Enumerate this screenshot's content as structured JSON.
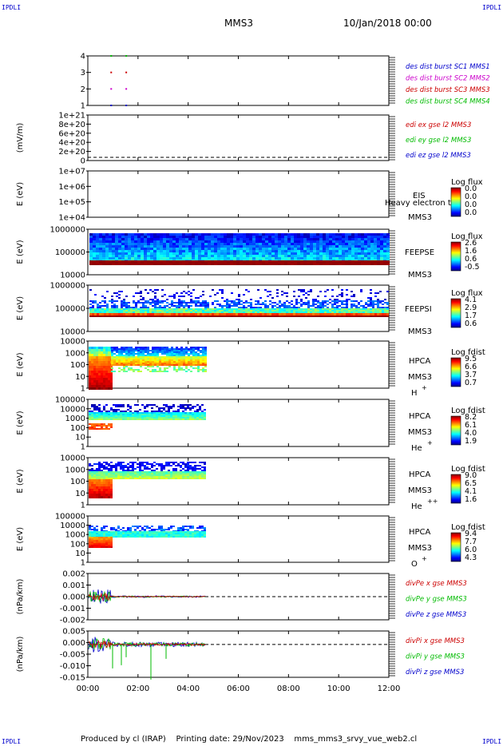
{
  "corners": {
    "tl": "IPDLI",
    "tr": "IPDLI",
    "bl": "IPDLI",
    "br": "IPDLI"
  },
  "header": {
    "spacecraft": "MMS3",
    "date": "10/Jan/2018 00:00"
  },
  "footer": {
    "text": "Produced by cl (IRAP)    Printing date: 29/Nov/2023    mms_mms3_srvy_vue_web2.cl"
  },
  "colors": {
    "sc1": "#0000cc",
    "sc2": "#cc00cc",
    "sc3": "#cc0000",
    "sc4": "#00bb00",
    "x": "#cc0000",
    "y": "#00bb00",
    "z": "#0000cc"
  },
  "chart_data": [
    {
      "id": "burst",
      "type": "scatter",
      "ylabel": "",
      "yticks": [
        "1",
        "2",
        "3",
        "4"
      ],
      "legend": [
        "des dist burst SC1 MMS1",
        "des dist burst SC2 MMS2",
        "des dist burst SC3 MMS3",
        "des dist burst SC4 MMS4"
      ],
      "series": [
        {
          "x": [
            0.9,
            1.5
          ],
          "y": [
            1,
            1
          ]
        },
        {
          "x": [
            0.9,
            1.5
          ],
          "y": [
            2,
            2
          ]
        },
        {
          "x": [
            0.9,
            1.5
          ],
          "y": [
            3,
            3
          ]
        },
        {
          "x": [
            0.9,
            1.5
          ],
          "y": [
            4,
            4
          ]
        }
      ]
    },
    {
      "id": "edi",
      "type": "line",
      "ylabel": "(mV/m)",
      "yticks": [
        "0",
        "2e+20",
        "4e+20",
        "6e+20",
        "8e+20",
        "1e+21"
      ],
      "legend": [
        "edi ex gse l2 MMS3",
        "edi ey gse l2 MMS3",
        "edi ez gse l2 MMS3"
      ]
    },
    {
      "id": "eis",
      "type": "heatmap",
      "ylabel": "E (eV)",
      "yticks": [
        "1e+04",
        "1e+05",
        "1e+06",
        "1e+07"
      ],
      "label1": "EIS",
      "label2": "MMS3",
      "overlay": "Heavy electron to",
      "colorbar_title": "Log flux",
      "colorbar_ticks": [
        "0.0",
        "0.0",
        "0.0",
        "0.0"
      ]
    },
    {
      "id": "feepse",
      "type": "heatmap",
      "ylabel": "E (eV)",
      "yticks": [
        "10000",
        "100000",
        "1000000"
      ],
      "label1": "FEEPSE",
      "label2": "MMS3",
      "colorbar_title": "Log flux",
      "colorbar_ticks": [
        "2.6",
        "1.6",
        "0.6",
        "-0.5"
      ]
    },
    {
      "id": "feepsi",
      "type": "heatmap",
      "ylabel": "E (eV)",
      "yticks": [
        "10000",
        "100000",
        "1000000"
      ],
      "label1": "FEEPSI",
      "label2": "MMS3",
      "colorbar_title": "Log flux",
      "colorbar_ticks": [
        "4.1",
        "2.9",
        "1.7",
        "0.6"
      ]
    },
    {
      "id": "hpca_h",
      "type": "heatmap",
      "ylabel": "E (eV)",
      "yticks": [
        "1",
        "10",
        "100",
        "1000",
        "10000"
      ],
      "label1": "HPCA",
      "label2": "MMS3",
      "species": "H",
      "sup": "+",
      "colorbar_title": "Log fdist",
      "colorbar_ticks": [
        "9.5",
        "6.6",
        "3.7",
        "0.7"
      ]
    },
    {
      "id": "hpca_he",
      "type": "heatmap",
      "ylabel": "E (eV)",
      "yticks": [
        "1",
        "10",
        "100",
        "1000",
        "10000",
        "100000"
      ],
      "label1": "HPCA",
      "label2": "MMS3",
      "species": "He",
      "sup": "+",
      "colorbar_title": "Log fdist",
      "colorbar_ticks": [
        "8.2",
        "6.1",
        "4.0",
        "1.9"
      ]
    },
    {
      "id": "hpca_hepp",
      "type": "heatmap",
      "ylabel": "E (eV)",
      "yticks": [
        "1",
        "10",
        "100",
        "1000",
        "10000"
      ],
      "label1": "HPCA",
      "label2": "MMS3",
      "species": "He",
      "sup": "++",
      "colorbar_title": "Log fdist",
      "colorbar_ticks": [
        "9.0",
        "6.5",
        "4.1",
        "1.6"
      ]
    },
    {
      "id": "hpca_o",
      "type": "heatmap",
      "ylabel": "E (eV)",
      "yticks": [
        "1",
        "10",
        "100",
        "1000",
        "10000",
        "100000"
      ],
      "label1": "HPCA",
      "label2": "MMS3",
      "species": "O",
      "sup": "+",
      "colorbar_title": "Log fdist",
      "colorbar_ticks": [
        "9.4",
        "7.7",
        "6.0",
        "4.3"
      ]
    },
    {
      "id": "divpe",
      "type": "line",
      "ylabel": "(nPa/km)",
      "ylim": [
        -0.003,
        0.003
      ],
      "yticks": [
        "-0.002",
        "-0.001",
        "0.000",
        "0.001",
        "0.002"
      ],
      "legend": [
        "divPe x gse MMS3",
        "divPe y gse MMS3",
        "divPe z gse MMS3"
      ]
    },
    {
      "id": "divpi",
      "type": "line",
      "ylabel": "(nPa/km)",
      "ylim": [
        -0.019,
        0.009
      ],
      "yticks": [
        "-0.015",
        "-0.010",
        "-0.005",
        "0.000",
        "0.005"
      ],
      "legend": [
        "divPi x gse MMS3",
        "divPi y gse MMS3",
        "divPi z gse MMS3"
      ]
    }
  ],
  "xaxis": {
    "range": [
      0,
      12
    ],
    "ticks": [
      "00:00",
      "02:00",
      "04:00",
      "06:00",
      "08:00",
      "10:00",
      "12:00"
    ]
  }
}
